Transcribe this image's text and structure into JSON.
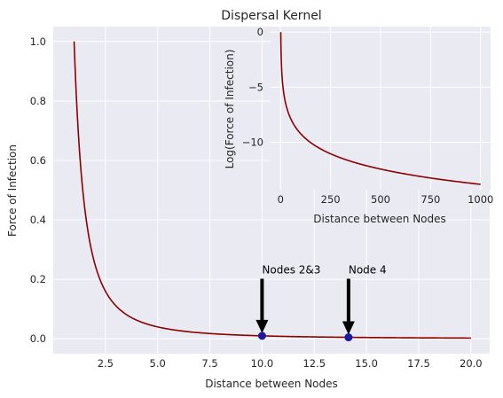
{
  "chart_data": [
    {
      "type": "line",
      "title": "Dispersal Kernel",
      "xlabel": "Distance between Nodes",
      "ylabel": "Force of Infection",
      "xlim": [
        0,
        20.9
      ],
      "ylim": [
        -0.05,
        1.05
      ],
      "xticks": [
        2.5,
        5.0,
        7.5,
        10.0,
        12.5,
        15.0,
        17.5,
        20.0
      ],
      "xtick_labels": [
        "2.5",
        "5.0",
        "7.5",
        "10.0",
        "12.5",
        "15.0",
        "17.5",
        "20.0"
      ],
      "yticks": [
        0.0,
        0.2,
        0.4,
        0.6,
        0.8,
        1.0
      ],
      "ytick_labels": [
        "0.0",
        "0.2",
        "0.4",
        "0.6",
        "0.8",
        "1.0"
      ],
      "grid": true,
      "series": [
        {
          "function": "x^-2",
          "x_range": [
            1,
            20
          ],
          "color": "#8b0000"
        }
      ],
      "points": [
        {
          "x": 10.0,
          "y": 0.01,
          "color": "#1a1aa0"
        },
        {
          "x": 14.14,
          "y": 0.005,
          "color": "#1a1aa0"
        }
      ],
      "annotations": [
        {
          "text": "Nodes 2&3",
          "x": 10.0,
          "y": 0.01,
          "text_x": 10.0,
          "text_y": 0.19
        },
        {
          "text": "Node 4",
          "x": 14.14,
          "y": 0.005,
          "text_x": 14.14,
          "text_y": 0.19
        }
      ]
    },
    {
      "type": "line",
      "title": "",
      "xlabel": "Distance between Nodes",
      "ylabel": "Log(Force of Infection)",
      "xlim": [
        -50,
        1050
      ],
      "ylim": [
        -14.3,
        0.5
      ],
      "xticks": [
        0,
        250,
        500,
        750,
        1000
      ],
      "xtick_labels": [
        "0",
        "250",
        "500",
        "750",
        "1000"
      ],
      "yticks": [
        0,
        -5,
        -10
      ],
      "ytick_labels": [
        "0",
        "−5",
        "−10"
      ],
      "grid": true,
      "series": [
        {
          "function": "-2*ln(x)",
          "x_range": [
            1,
            1000
          ],
          "color": "#8b0000"
        }
      ]
    }
  ],
  "colors": {
    "axes_bg": "#eaeaf2",
    "grid": "#ffffff",
    "line": "#8b0000",
    "points": "#1a1aa0",
    "arrow": "#000000"
  }
}
